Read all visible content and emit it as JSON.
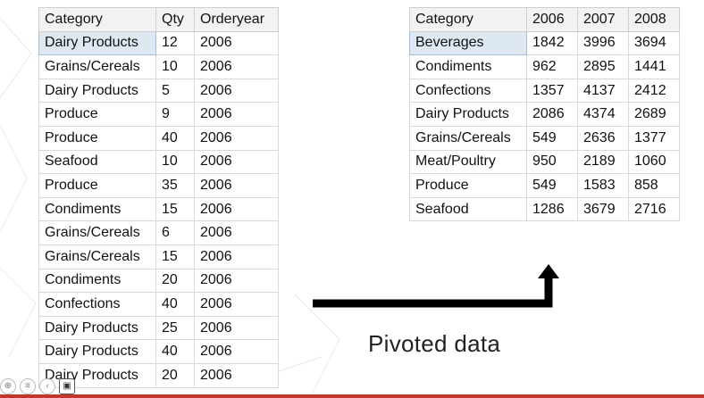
{
  "source": {
    "headers": [
      "Category",
      "Qty",
      "Orderyear"
    ],
    "rows": [
      [
        "Dairy Products",
        "12",
        "2006"
      ],
      [
        "Grains/Cereals",
        "10",
        "2006"
      ],
      [
        "Dairy Products",
        "5",
        "2006"
      ],
      [
        "Produce",
        "9",
        "2006"
      ],
      [
        "Produce",
        "40",
        "2006"
      ],
      [
        "Seafood",
        "10",
        "2006"
      ],
      [
        "Produce",
        "35",
        "2006"
      ],
      [
        "Condiments",
        "15",
        "2006"
      ],
      [
        "Grains/Cereals",
        "6",
        "2006"
      ],
      [
        "Grains/Cereals",
        "15",
        "2006"
      ],
      [
        "Condiments",
        "20",
        "2006"
      ],
      [
        "Confections",
        "40",
        "2006"
      ],
      [
        "Dairy Products",
        "25",
        "2006"
      ],
      [
        "Dairy Products",
        "40",
        "2006"
      ],
      [
        "Dairy Products",
        "20",
        "2006"
      ]
    ]
  },
  "pivot": {
    "headers": [
      "Category",
      "2006",
      "2007",
      "2008"
    ],
    "rows": [
      [
        "Beverages",
        "1842",
        "3996",
        "3694"
      ],
      [
        "Condiments",
        "962",
        "2895",
        "1441"
      ],
      [
        "Confections",
        "1357",
        "4137",
        "2412"
      ],
      [
        "Dairy Products",
        "2086",
        "4374",
        "2689"
      ],
      [
        "Grains/Cereals",
        "549",
        "2636",
        "1377"
      ],
      [
        "Meat/Poultry",
        "950",
        "2189",
        "1060"
      ],
      [
        "Produce",
        "549",
        "1583",
        "858"
      ],
      [
        "Seafood",
        "1286",
        "3679",
        "2716"
      ]
    ]
  },
  "caption": "Pivoted data",
  "colors": {
    "arrow": "#000000",
    "selection": "#dde8f3",
    "accent_bar": "#c0392b"
  },
  "icons": [
    "zoom-icon",
    "menu-icon",
    "back-icon",
    "camera-icon"
  ]
}
